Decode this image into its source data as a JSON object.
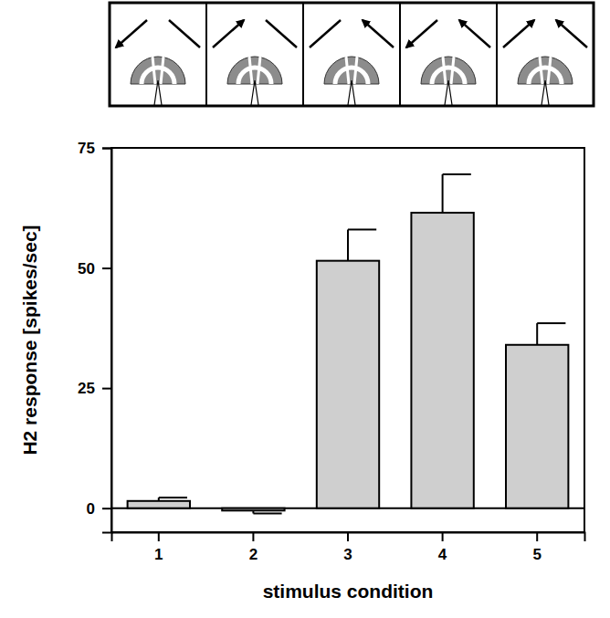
{
  "chart_data": {
    "type": "bar",
    "x_label": "stimulus condition",
    "y_label": "H2 response [spikes/sec]",
    "categories": [
      "1",
      "2",
      "3",
      "4",
      "5"
    ],
    "values": [
      1.5,
      -0.5,
      51.5,
      61.5,
      34
    ],
    "errors": [
      0.7,
      0.6,
      6.5,
      8,
      4.5
    ],
    "color": "#cfcfcf",
    "ylim": [
      -5,
      75
    ],
    "yticks": [
      0,
      25,
      50,
      75
    ]
  }
}
